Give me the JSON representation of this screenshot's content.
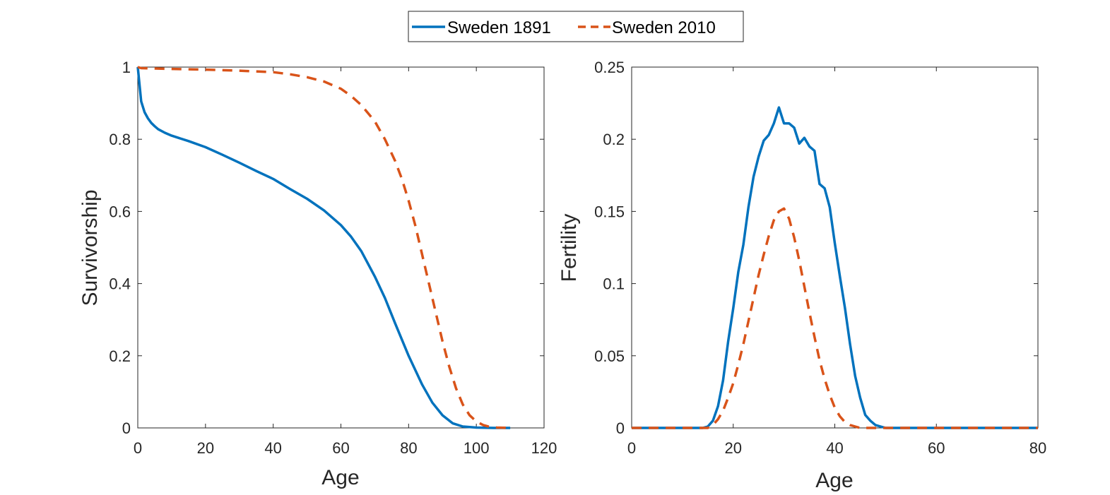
{
  "legend": {
    "entries": [
      {
        "label": "Sweden 1891",
        "color": "#0072BD",
        "dash": "solid"
      },
      {
        "label": "Sweden 2010",
        "color": "#D95319",
        "dash": "dashed"
      }
    ]
  },
  "chart_data": [
    {
      "type": "line",
      "xlabel": "Age",
      "ylabel": "Survivorship",
      "xlim": [
        0,
        120
      ],
      "ylim": [
        0,
        1
      ],
      "xticks": [
        0,
        20,
        40,
        60,
        80,
        100,
        120
      ],
      "xtick_labels": [
        "0",
        "20",
        "40",
        "60",
        "80",
        "100",
        "120"
      ],
      "yticks": [
        0,
        0.2,
        0.4,
        0.6,
        0.8,
        1
      ],
      "ytick_labels": [
        "0",
        "0.2",
        "0.4",
        "0.6",
        "0.8",
        "1"
      ],
      "series": [
        {
          "name": "Sweden 1891",
          "color": "#0072BD",
          "dash": "solid",
          "x": [
            0,
            1,
            2,
            3,
            4,
            5,
            6,
            8,
            10,
            15,
            20,
            25,
            30,
            35,
            40,
            45,
            50,
            55,
            60,
            63,
            66,
            70,
            73,
            76,
            80,
            84,
            87,
            90,
            93,
            96,
            100,
            105,
            110
          ],
          "y": [
            1,
            0.905,
            0.875,
            0.858,
            0.845,
            0.836,
            0.828,
            0.818,
            0.81,
            0.795,
            0.778,
            0.757,
            0.735,
            0.712,
            0.69,
            0.662,
            0.635,
            0.603,
            0.562,
            0.53,
            0.49,
            0.42,
            0.36,
            0.29,
            0.2,
            0.12,
            0.07,
            0.035,
            0.013,
            0.004,
            0.001,
            0,
            0
          ]
        },
        {
          "name": "Sweden 2010",
          "color": "#D95319",
          "dash": "dashed",
          "x": [
            0,
            1,
            5,
            10,
            20,
            30,
            40,
            45,
            50,
            55,
            60,
            63,
            66,
            70,
            73,
            76,
            78,
            80,
            82,
            84,
            86,
            88,
            90,
            92,
            94,
            96,
            98,
            100,
            102,
            104,
            106,
            110
          ],
          "y": [
            1,
            0.997,
            0.996,
            0.995,
            0.993,
            0.99,
            0.986,
            0.98,
            0.972,
            0.96,
            0.94,
            0.92,
            0.895,
            0.85,
            0.8,
            0.74,
            0.69,
            0.63,
            0.56,
            0.48,
            0.4,
            0.32,
            0.24,
            0.17,
            0.11,
            0.065,
            0.035,
            0.018,
            0.008,
            0.003,
            0.001,
            0
          ]
        }
      ]
    },
    {
      "type": "line",
      "xlabel": "Age",
      "ylabel": "Fertility",
      "xlim": [
        0,
        80
      ],
      "ylim": [
        0,
        0.25
      ],
      "xticks": [
        0,
        20,
        40,
        60,
        80
      ],
      "xtick_labels": [
        "0",
        "20",
        "40",
        "60",
        "80"
      ],
      "yticks": [
        0,
        0.05,
        0.1,
        0.15,
        0.2,
        0.25
      ],
      "ytick_labels": [
        "0",
        "0.05",
        "0.1",
        "0.15",
        "0.2",
        "0.25"
      ],
      "series": [
        {
          "name": "Sweden 1891",
          "color": "#0072BD",
          "dash": "solid",
          "x": [
            0,
            14,
            15,
            16,
            17,
            18,
            19,
            20,
            21,
            22,
            23,
            24,
            25,
            26,
            27,
            28,
            29,
            30,
            31,
            32,
            33,
            34,
            35,
            36,
            37,
            38,
            39,
            40,
            41,
            42,
            43,
            44,
            45,
            46,
            47,
            48,
            49,
            50,
            80
          ],
          "y": [
            0,
            0,
            0.001,
            0.005,
            0.015,
            0.033,
            0.06,
            0.083,
            0.108,
            0.127,
            0.153,
            0.174,
            0.188,
            0.199,
            0.203,
            0.211,
            0.222,
            0.211,
            0.211,
            0.208,
            0.197,
            0.201,
            0.195,
            0.192,
            0.169,
            0.166,
            0.153,
            0.128,
            0.105,
            0.083,
            0.058,
            0.036,
            0.021,
            0.009,
            0.005,
            0.002,
            0.001,
            0,
            0
          ]
        },
        {
          "name": "Sweden 2010",
          "color": "#D95319",
          "dash": "dashed",
          "x": [
            0,
            15,
            16,
            17,
            18,
            19,
            20,
            21,
            22,
            23,
            24,
            25,
            26,
            27,
            28,
            29,
            30,
            31,
            32,
            33,
            34,
            35,
            36,
            37,
            38,
            39,
            40,
            41,
            42,
            43,
            44,
            45,
            46,
            47,
            48,
            80
          ],
          "y": [
            0,
            0,
            0.002,
            0.006,
            0.012,
            0.021,
            0.031,
            0.044,
            0.058,
            0.074,
            0.09,
            0.106,
            0.12,
            0.133,
            0.144,
            0.15,
            0.152,
            0.145,
            0.132,
            0.116,
            0.098,
            0.08,
            0.063,
            0.047,
            0.034,
            0.023,
            0.014,
            0.008,
            0.004,
            0.002,
            0.001,
            0,
            0,
            0,
            0,
            0
          ]
        }
      ]
    }
  ]
}
